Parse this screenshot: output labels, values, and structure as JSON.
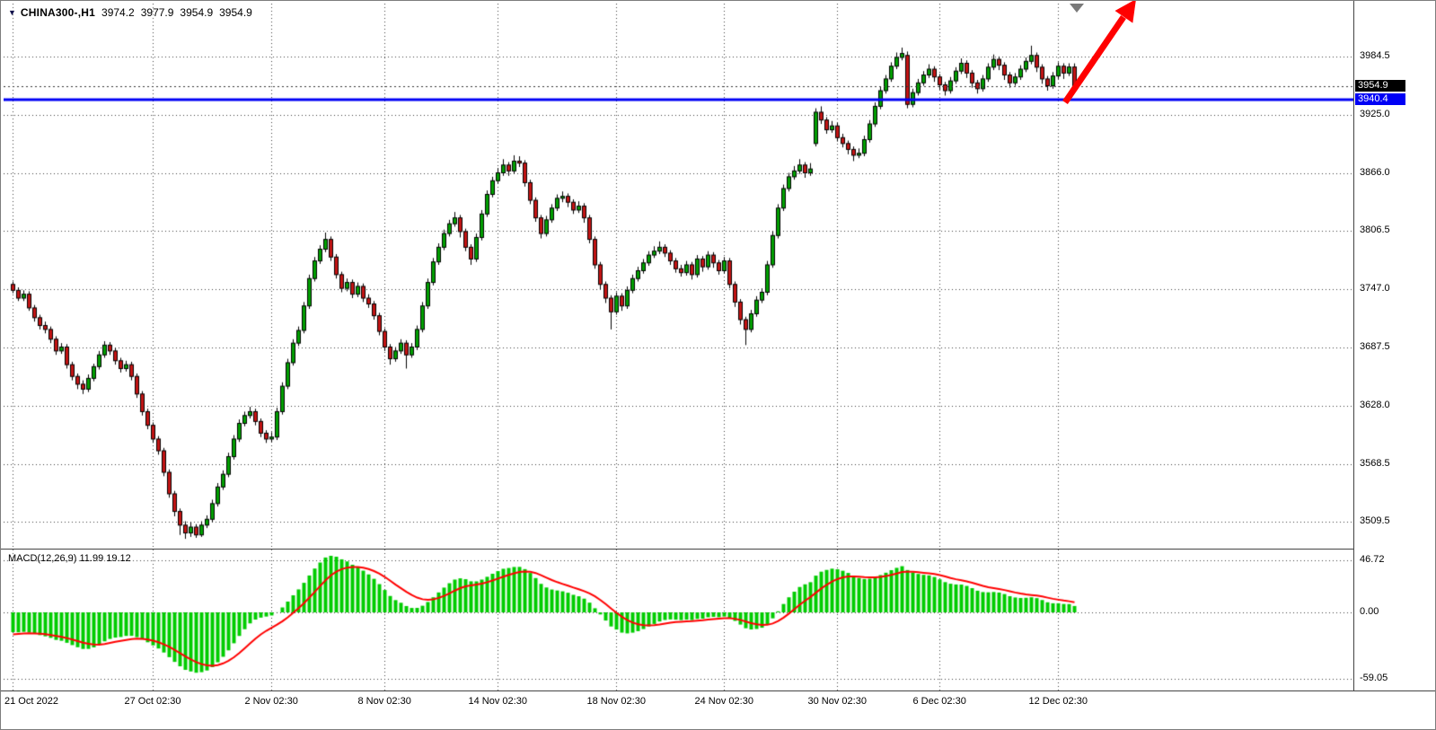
{
  "icons": {
    "symbol_dropdown": "▼"
  },
  "header": {
    "symbol": "CHINA300-,H1",
    "open": "3974.2",
    "high": "3977.9",
    "low": "3954.9",
    "close": "3954.9"
  },
  "indicator": {
    "label": "MACD(12,26,9) 11.99 19.12"
  },
  "price_axis": {
    "bid_label": "3954.9",
    "hline_label": "3940.4"
  },
  "colors": {
    "bull": "#00A000",
    "bear": "#C41414",
    "wick": "#000000",
    "outline": "#000000",
    "grid": "#3c3c3c",
    "macd_hist": "#00CC00",
    "macd_signal": "#FF0000",
    "hline": "#0000F5",
    "bid_line": "#333333",
    "bid_badge_bg": "#000000",
    "hline_badge_bg": "#0000F5",
    "arrow": "#FF0000"
  },
  "chart_data": {
    "type": "candlestick",
    "symbol": "CHINA300-,H1",
    "timeframe": "H1",
    "current_ohlc": [
      3974.2,
      3977.9,
      3954.9,
      3954.9
    ],
    "bid_price": 3954.9,
    "hline_price": 3940.4,
    "y_range": [
      3482,
      4039
    ],
    "y_gridlines": [
      3984.5,
      3925.0,
      3866.0,
      3806.5,
      3747.0,
      3687.5,
      3628.0,
      3568.5,
      3509.5
    ],
    "x_ticks": [
      {
        "i": 0,
        "label": "21 Oct 2022"
      },
      {
        "i": 26,
        "label": "27 Oct 02:30"
      },
      {
        "i": 48,
        "label": "2 Nov 02:30"
      },
      {
        "i": 69,
        "label": "8 Nov 02:30"
      },
      {
        "i": 90,
        "label": "14 Nov 02:30"
      },
      {
        "i": 112,
        "label": "18 Nov 02:30"
      },
      {
        "i": 132,
        "label": "24 Nov 02:30"
      },
      {
        "i": 153,
        "label": "30 Nov 02:30"
      },
      {
        "i": 172,
        "label": "6 Dec 02:30"
      },
      {
        "i": 194,
        "label": "12 Dec 02:30"
      }
    ],
    "macd": {
      "params": [
        12,
        26,
        9
      ],
      "display_values": [
        11.99,
        19.12
      ],
      "axis": [
        46.72,
        0,
        -59.05
      ]
    },
    "candles": [
      [
        3752,
        3755,
        3743,
        3746
      ],
      [
        3746,
        3749,
        3735,
        3738
      ],
      [
        3738,
        3746,
        3735,
        3742
      ],
      [
        3742,
        3745,
        3725,
        3728
      ],
      [
        3728,
        3731,
        3714,
        3718
      ],
      [
        3718,
        3721,
        3706,
        3710
      ],
      [
        3710,
        3714,
        3702,
        3706
      ],
      [
        3706,
        3709,
        3692,
        3696
      ],
      [
        3696,
        3699,
        3680,
        3684
      ],
      [
        3684,
        3692,
        3681,
        3688
      ],
      [
        3688,
        3691,
        3666,
        3670
      ],
      [
        3670,
        3673,
        3654,
        3658
      ],
      [
        3658,
        3661,
        3645,
        3650
      ],
      [
        3650,
        3654,
        3640,
        3645
      ],
      [
        3645,
        3660,
        3642,
        3656
      ],
      [
        3656,
        3671,
        3653,
        3668
      ],
      [
        3668,
        3684,
        3665,
        3680
      ],
      [
        3680,
        3694,
        3677,
        3690
      ],
      [
        3690,
        3693,
        3680,
        3684
      ],
      [
        3684,
        3687,
        3670,
        3674
      ],
      [
        3674,
        3677,
        3662,
        3666
      ],
      [
        3666,
        3674,
        3663,
        3670
      ],
      [
        3670,
        3673,
        3654,
        3658
      ],
      [
        3658,
        3661,
        3636,
        3640
      ],
      [
        3640,
        3643,
        3618,
        3622
      ],
      [
        3622,
        3625,
        3604,
        3608
      ],
      [
        3608,
        3611,
        3590,
        3594
      ],
      [
        3594,
        3597,
        3578,
        3582
      ],
      [
        3582,
        3585,
        3556,
        3560
      ],
      [
        3560,
        3563,
        3534,
        3538
      ],
      [
        3538,
        3541,
        3515,
        3520
      ],
      [
        3520,
        3523,
        3496,
        3506
      ],
      [
        3506,
        3510,
        3492,
        3498
      ],
      [
        3498,
        3509,
        3494,
        3504
      ],
      [
        3504,
        3507,
        3493,
        3496
      ],
      [
        3496,
        3510,
        3494,
        3506
      ],
      [
        3506,
        3516,
        3503,
        3512
      ],
      [
        3512,
        3532,
        3509,
        3528
      ],
      [
        3528,
        3549,
        3525,
        3545
      ],
      [
        3545,
        3562,
        3542,
        3558
      ],
      [
        3558,
        3580,
        3555,
        3576
      ],
      [
        3576,
        3598,
        3573,
        3594
      ],
      [
        3594,
        3614,
        3591,
        3610
      ],
      [
        3610,
        3622,
        3607,
        3618
      ],
      [
        3618,
        3627,
        3615,
        3622
      ],
      [
        3622,
        3625,
        3608,
        3612
      ],
      [
        3612,
        3615,
        3596,
        3600
      ],
      [
        3600,
        3603,
        3590,
        3594
      ],
      [
        3594,
        3601,
        3591,
        3596
      ],
      [
        3596,
        3626,
        3593,
        3622
      ],
      [
        3622,
        3652,
        3619,
        3648
      ],
      [
        3648,
        3676,
        3645,
        3672
      ],
      [
        3672,
        3696,
        3669,
        3692
      ],
      [
        3692,
        3709,
        3689,
        3705
      ],
      [
        3705,
        3734,
        3702,
        3730
      ],
      [
        3730,
        3762,
        3727,
        3758
      ],
      [
        3758,
        3780,
        3755,
        3776
      ],
      [
        3776,
        3792,
        3773,
        3788
      ],
      [
        3788,
        3805,
        3785,
        3798
      ],
      [
        3798,
        3801,
        3776,
        3780
      ],
      [
        3780,
        3783,
        3758,
        3762
      ],
      [
        3762,
        3765,
        3744,
        3748
      ],
      [
        3748,
        3758,
        3745,
        3754
      ],
      [
        3754,
        3757,
        3738,
        3742
      ],
      [
        3742,
        3754,
        3739,
        3750
      ],
      [
        3750,
        3753,
        3734,
        3738
      ],
      [
        3738,
        3742,
        3728,
        3732
      ],
      [
        3732,
        3735,
        3716,
        3720
      ],
      [
        3720,
        3723,
        3700,
        3704
      ],
      [
        3704,
        3707,
        3684,
        3688
      ],
      [
        3688,
        3691,
        3670,
        3676
      ],
      [
        3676,
        3688,
        3673,
        3684
      ],
      [
        3684,
        3696,
        3681,
        3692
      ],
      [
        3692,
        3695,
        3666,
        3680
      ],
      [
        3680,
        3692,
        3677,
        3688
      ],
      [
        3688,
        3710,
        3685,
        3706
      ],
      [
        3706,
        3734,
        3703,
        3730
      ],
      [
        3730,
        3758,
        3727,
        3754
      ],
      [
        3754,
        3779,
        3751,
        3775
      ],
      [
        3775,
        3794,
        3772,
        3790
      ],
      [
        3790,
        3808,
        3787,
        3804
      ],
      [
        3804,
        3818,
        3801,
        3814
      ],
      [
        3814,
        3826,
        3811,
        3820
      ],
      [
        3820,
        3823,
        3800,
        3806
      ],
      [
        3806,
        3809,
        3786,
        3790
      ],
      [
        3790,
        3793,
        3772,
        3778
      ],
      [
        3778,
        3804,
        3775,
        3800
      ],
      [
        3800,
        3828,
        3797,
        3824
      ],
      [
        3824,
        3848,
        3821,
        3844
      ],
      [
        3844,
        3862,
        3841,
        3858
      ],
      [
        3858,
        3871,
        3855,
        3866
      ],
      [
        3866,
        3880,
        3863,
        3874
      ],
      [
        3874,
        3877,
        3863,
        3868
      ],
      [
        3868,
        3884,
        3865,
        3878
      ],
      [
        3878,
        3883,
        3872,
        3876
      ],
      [
        3876,
        3879,
        3852,
        3856
      ],
      [
        3856,
        3859,
        3834,
        3838
      ],
      [
        3838,
        3841,
        3816,
        3820
      ],
      [
        3820,
        3823,
        3799,
        3804
      ],
      [
        3804,
        3822,
        3801,
        3818
      ],
      [
        3818,
        3834,
        3815,
        3830
      ],
      [
        3830,
        3844,
        3827,
        3840
      ],
      [
        3840,
        3847,
        3836,
        3842
      ],
      [
        3842,
        3845,
        3831,
        3836
      ],
      [
        3836,
        3839,
        3824,
        3828
      ],
      [
        3828,
        3837,
        3825,
        3832
      ],
      [
        3832,
        3835,
        3815,
        3820
      ],
      [
        3820,
        3823,
        3794,
        3798
      ],
      [
        3798,
        3801,
        3768,
        3772
      ],
      [
        3772,
        3775,
        3747,
        3752
      ],
      [
        3752,
        3755,
        3733,
        3738
      ],
      [
        3738,
        3741,
        3706,
        3724
      ],
      [
        3724,
        3744,
        3721,
        3740
      ],
      [
        3740,
        3743,
        3725,
        3730
      ],
      [
        3730,
        3750,
        3727,
        3746
      ],
      [
        3746,
        3762,
        3743,
        3758
      ],
      [
        3758,
        3770,
        3755,
        3766
      ],
      [
        3766,
        3778,
        3763,
        3774
      ],
      [
        3774,
        3786,
        3771,
        3782
      ],
      [
        3782,
        3791,
        3779,
        3786
      ],
      [
        3786,
        3796,
        3783,
        3790
      ],
      [
        3790,
        3793,
        3780,
        3784
      ],
      [
        3784,
        3787,
        3772,
        3776
      ],
      [
        3776,
        3779,
        3764,
        3768
      ],
      [
        3768,
        3772,
        3760,
        3764
      ],
      [
        3764,
        3776,
        3761,
        3772
      ],
      [
        3772,
        3775,
        3757,
        3762
      ],
      [
        3762,
        3782,
        3759,
        3778
      ],
      [
        3778,
        3781,
        3765,
        3770
      ],
      [
        3770,
        3786,
        3767,
        3782
      ],
      [
        3782,
        3785,
        3769,
        3774
      ],
      [
        3774,
        3777,
        3762,
        3766
      ],
      [
        3766,
        3780,
        3763,
        3776
      ],
      [
        3776,
        3779,
        3748,
        3752
      ],
      [
        3752,
        3755,
        3729,
        3734
      ],
      [
        3734,
        3737,
        3711,
        3716
      ],
      [
        3716,
        3719,
        3690,
        3706
      ],
      [
        3706,
        3726,
        3703,
        3722
      ],
      [
        3722,
        3740,
        3719,
        3736
      ],
      [
        3736,
        3748,
        3733,
        3744
      ],
      [
        3744,
        3776,
        3741,
        3772
      ],
      [
        3772,
        3806,
        3769,
        3802
      ],
      [
        3802,
        3834,
        3799,
        3830
      ],
      [
        3830,
        3854,
        3827,
        3850
      ],
      [
        3850,
        3866,
        3847,
        3862
      ],
      [
        3862,
        3873,
        3859,
        3868
      ],
      [
        3868,
        3880,
        3865,
        3874
      ],
      [
        3874,
        3877,
        3861,
        3866
      ],
      [
        3866,
        3876,
        3863,
        3870
      ],
      [
        3896,
        3932,
        3893,
        3928
      ],
      [
        3928,
        3934,
        3916,
        3920
      ],
      [
        3920,
        3923,
        3906,
        3910
      ],
      [
        3910,
        3919,
        3907,
        3914
      ],
      [
        3914,
        3917,
        3898,
        3902
      ],
      [
        3902,
        3906,
        3892,
        3896
      ],
      [
        3896,
        3899,
        3885,
        3890
      ],
      [
        3890,
        3893,
        3878,
        3884
      ],
      [
        3884,
        3891,
        3881,
        3886
      ],
      [
        3886,
        3904,
        3883,
        3900
      ],
      [
        3900,
        3920,
        3897,
        3916
      ],
      [
        3916,
        3938,
        3913,
        3934
      ],
      [
        3934,
        3954,
        3931,
        3950
      ],
      [
        3950,
        3966,
        3947,
        3962
      ],
      [
        3962,
        3979,
        3959,
        3975
      ],
      [
        3975,
        3989,
        3972,
        3984
      ],
      [
        3984,
        3994,
        3981,
        3988
      ],
      [
        3986,
        3990,
        3932,
        3936
      ],
      [
        3936,
        3952,
        3933,
        3948
      ],
      [
        3948,
        3962,
        3945,
        3958
      ],
      [
        3958,
        3970,
        3955,
        3966
      ],
      [
        3966,
        3977,
        3963,
        3972
      ],
      [
        3972,
        3975,
        3959,
        3964
      ],
      [
        3964,
        3967,
        3951,
        3956
      ],
      [
        3956,
        3959,
        3945,
        3950
      ],
      [
        3950,
        3964,
        3947,
        3960
      ],
      [
        3960,
        3974,
        3957,
        3970
      ],
      [
        3970,
        3983,
        3967,
        3978
      ],
      [
        3978,
        3981,
        3963,
        3968
      ],
      [
        3968,
        3971,
        3953,
        3958
      ],
      [
        3958,
        3961,
        3947,
        3952
      ],
      [
        3952,
        3966,
        3949,
        3962
      ],
      [
        3962,
        3978,
        3959,
        3974
      ],
      [
        3974,
        3987,
        3971,
        3982
      ],
      [
        3982,
        3985,
        3971,
        3976
      ],
      [
        3976,
        3979,
        3961,
        3966
      ],
      [
        3966,
        3969,
        3953,
        3958
      ],
      [
        3958,
        3968,
        3955,
        3964
      ],
      [
        3964,
        3976,
        3961,
        3972
      ],
      [
        3972,
        3984,
        3969,
        3980
      ],
      [
        3980,
        3996,
        3977,
        3986
      ],
      [
        3986,
        3989,
        3969,
        3974
      ],
      [
        3974,
        3977,
        3957,
        3962
      ],
      [
        3962,
        3965,
        3950,
        3955
      ],
      [
        3955,
        3969,
        3952,
        3965
      ],
      [
        3965,
        3979,
        3962,
        3975
      ],
      [
        3975,
        3978,
        3962,
        3968
      ],
      [
        3968,
        3978,
        3965,
        3974.2
      ],
      [
        3974.2,
        3977.9,
        3954.9,
        3954.9
      ]
    ]
  }
}
